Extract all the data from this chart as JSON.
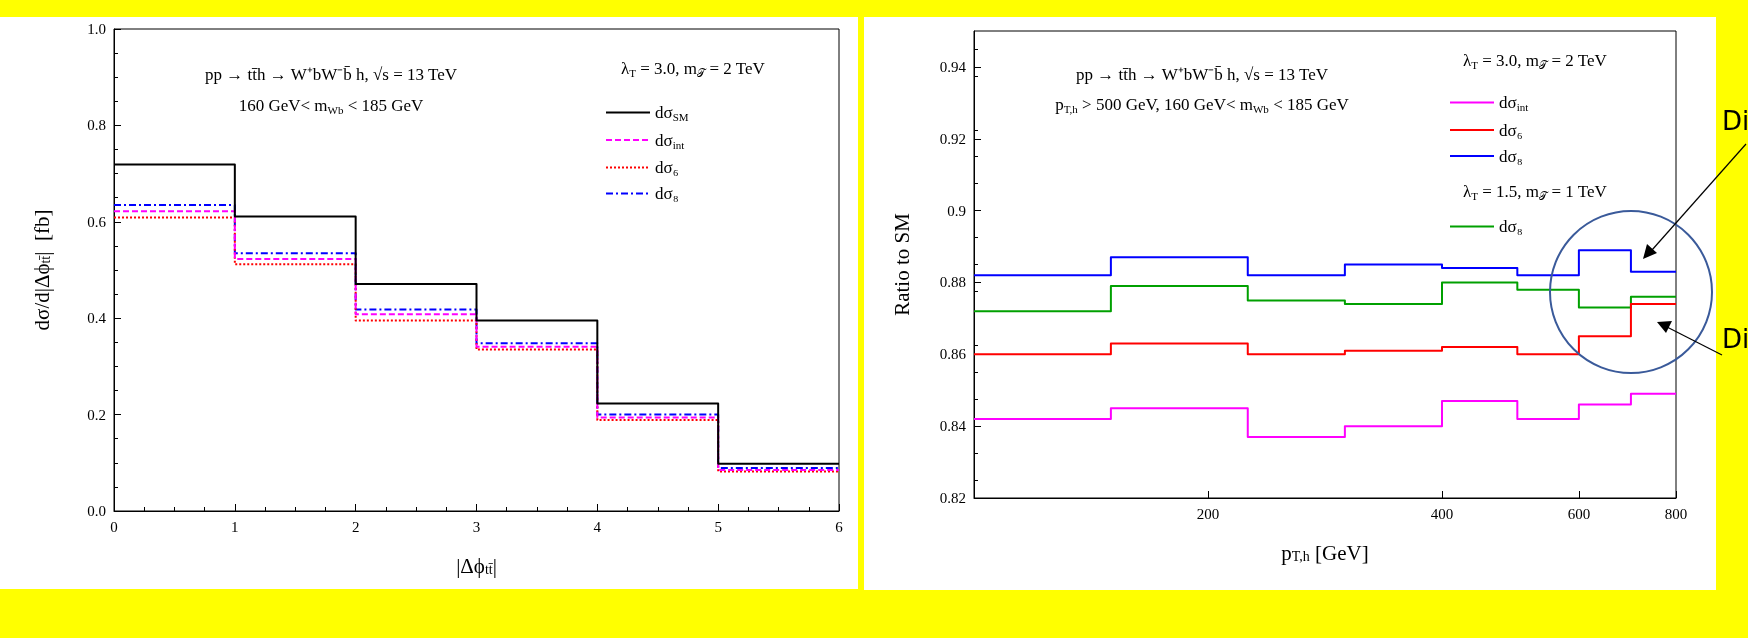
{
  "chart_data": [
    {
      "type": "step",
      "title": "pp → tt̄h → W⁺bW⁻b̄ h, √s = 13 TeV",
      "subtitle": "160 GeV< m$_{Wb}$ < 185 GeV",
      "legend_title": "λ$_{T}$ = 3.0, m$_{𝒯}$ = 2 TeV",
      "xlabel": "|Δϕ$_{tt̄}$|",
      "ylabel": "dσ/d|Δϕ$_{tt̄}$|  [fb]",
      "x": [
        0,
        1,
        2,
        3,
        4,
        5,
        6
      ],
      "xlim": [
        0,
        6
      ],
      "xticks": [
        0,
        1,
        2,
        3,
        4,
        5,
        6
      ],
      "ylim": [
        0,
        1
      ],
      "yticks": [
        {
          "value": 0,
          "label": "0.0"
        },
        {
          "value": 0.2,
          "label": "0.2"
        },
        {
          "value": 0.4,
          "label": "0.4"
        },
        {
          "value": 0.6,
          "label": "0.6"
        },
        {
          "value": 0.8,
          "label": "0.8"
        },
        {
          "value": 1,
          "label": "1.0"
        }
      ],
      "grid": false,
      "legend": "top right",
      "marker": "none",
      "series": [
        {
          "name": "dσ$_{SM}$",
          "color": "#000000",
          "line_style": "solid",
          "values": [
            0.719,
            0.611,
            0.471,
            0.395,
            0.223,
            0.098,
            0.098
          ]
        },
        {
          "name": "dσ$_{int}$",
          "color": "#ff00ff",
          "line_style": "dashed",
          "values": [
            0.622,
            0.523,
            0.408,
            0.341,
            0.194,
            0.085,
            0.085
          ]
        },
        {
          "name": "dσ₆",
          "color": "#ff0000",
          "line_style": "dotted",
          "values": [
            0.609,
            0.512,
            0.395,
            0.335,
            0.189,
            0.082,
            0.082
          ]
        },
        {
          "name": "dσ₈",
          "color": "#0000ff",
          "line_style": "dashdot",
          "values": [
            0.635,
            0.535,
            0.418,
            0.348,
            0.2,
            0.089,
            0.089
          ]
        }
      ]
    },
    {
      "type": "step",
      "title": "pp → tt̄h → W⁺bW⁻b̄ h, √s = 13 TeV",
      "subtitle": "p$_{T,h}$ > 500 GeV, 160 GeV< m$_{Wb}$ < 185 GeV",
      "legend_title": "λ$_{T}$ = 3.0, m$_{𝒯}$ = 2 TeV",
      "annotations": [
        "λ$_{T}$ = 1.5, m$_{𝒯}$ = 1 TeV",
        "Di",
        "Di"
      ],
      "xlabel": "p$_{T,h}$ [GeV]",
      "ylabel": "Ratio to SM",
      "x": [
        100,
        150,
        225,
        300,
        400,
        500,
        600,
        700,
        800
      ],
      "xlim": [
        100,
        800
      ],
      "xticks": [
        200,
        400,
        600,
        800
      ],
      "log": "x",
      "ylim": [
        0.82,
        0.95
      ],
      "yticks": [
        0.82,
        0.84,
        0.86,
        0.88,
        0.9,
        0.92,
        0.94
      ],
      "grid": false,
      "legend": "top right",
      "marker": "none",
      "series": [
        {
          "name": "dσ$_{int}$",
          "color": "#ff00ff",
          "line_style": "solid",
          "values": [
            0.842,
            0.845,
            0.837,
            0.84,
            0.847,
            0.842,
            0.846,
            0.849,
            0.849
          ]
        },
        {
          "name": "dσ₆",
          "color": "#ff0000",
          "line_style": "solid",
          "values": [
            0.86,
            0.863,
            0.86,
            0.861,
            0.862,
            0.86,
            0.865,
            0.874,
            0.874
          ]
        },
        {
          "name": "dσ₈",
          "color": "#0000ff",
          "line_style": "solid",
          "values": [
            0.882,
            0.887,
            0.882,
            0.885,
            0.884,
            0.882,
            0.889,
            0.883,
            0.883
          ]
        },
        {
          "name": "dσ₈ ",
          "color": "#00a000",
          "line_style": "solid",
          "values": [
            0.872,
            0.879,
            0.875,
            0.874,
            0.88,
            0.878,
            0.873,
            0.876,
            0.876
          ]
        }
      ]
    }
  ]
}
